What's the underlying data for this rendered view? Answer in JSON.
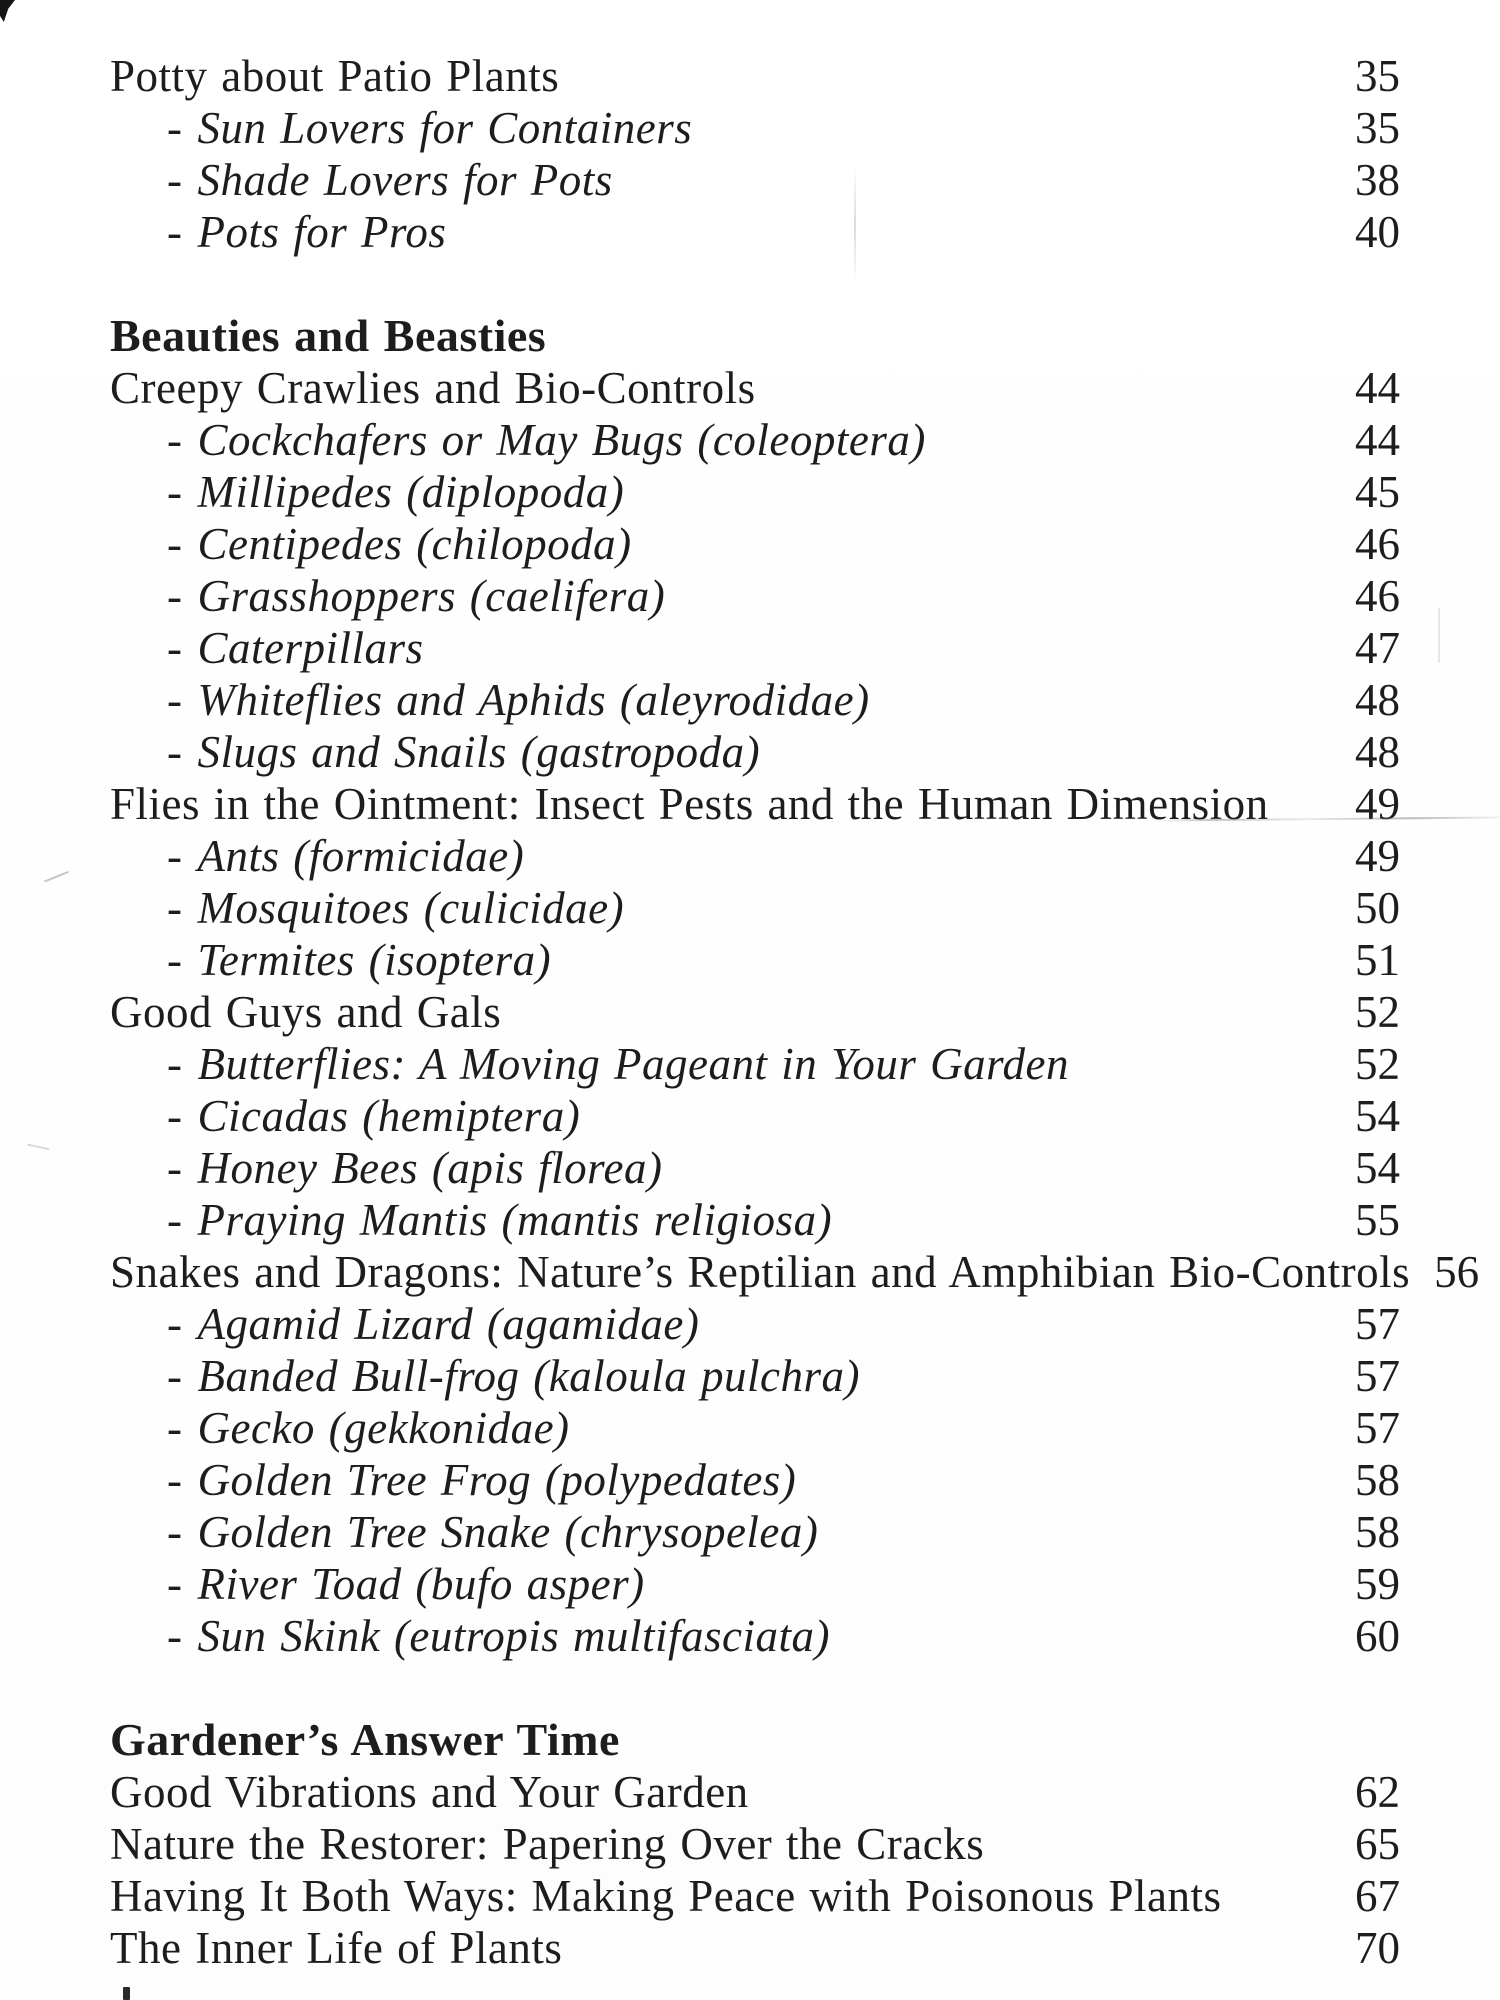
{
  "colors": {
    "ink": "#1d1d1d",
    "paper": "#ffffff"
  },
  "toc": {
    "sub_prefix": "-",
    "sections": [
      {
        "heading": null,
        "entries": [
          {
            "title": "Potty about Patio Plants",
            "page": "35",
            "sub": false
          },
          {
            "title": "Sun Lovers for Containers",
            "page": "35",
            "sub": true
          },
          {
            "title": "Shade Lovers for Pots",
            "page": "38",
            "sub": true
          },
          {
            "title": "Pots for Pros",
            "page": "40",
            "sub": true
          }
        ]
      },
      {
        "heading": "Beauties and Beasties",
        "entries": [
          {
            "title": "Creepy Crawlies and Bio-Controls",
            "page": "44",
            "sub": false
          },
          {
            "title": "Cockchafers or May Bugs (coleoptera)",
            "page": "44",
            "sub": true
          },
          {
            "title": "Millipedes (diplopoda)",
            "page": "45",
            "sub": true
          },
          {
            "title": "Centipedes (chilopoda)",
            "page": "46",
            "sub": true
          },
          {
            "title": "Grasshoppers (caelifera)",
            "page": "46",
            "sub": true
          },
          {
            "title": "Caterpillars",
            "page": "47",
            "sub": true
          },
          {
            "title": "Whiteflies and Aphids (aleyrodidae)",
            "page": "48",
            "sub": true
          },
          {
            "title": "Slugs and Snails (gastropoda)",
            "page": "48",
            "sub": true
          },
          {
            "title": "Flies in the Ointment: Insect Pests and the Human Dimension",
            "page": "49",
            "sub": false
          },
          {
            "title": "Ants (formicidae)",
            "page": "49",
            "sub": true
          },
          {
            "title": "Mosquitoes (culicidae)",
            "page": "50",
            "sub": true
          },
          {
            "title": "Termites (isoptera)",
            "page": "51",
            "sub": true
          },
          {
            "title": "Good Guys and Gals",
            "page": "52",
            "sub": false
          },
          {
            "title": "Butterflies: A Moving Pageant in Your Garden",
            "page": "52",
            "sub": true
          },
          {
            "title": "Cicadas (hemiptera)",
            "page": "54",
            "sub": true
          },
          {
            "title": "Honey Bees (apis florea)",
            "page": "54",
            "sub": true
          },
          {
            "title": "Praying Mantis (mantis religiosa)",
            "page": "55",
            "sub": true
          },
          {
            "title": "Snakes and Dragons: Nature’s Reptilian and Amphibian Bio-Controls",
            "page": "56",
            "sub": false
          },
          {
            "title": "Agamid Lizard (agamidae)",
            "page": "57",
            "sub": true
          },
          {
            "title": "Banded Bull-frog (kaloula pulchra)",
            "page": "57",
            "sub": true
          },
          {
            "title": "Gecko (gekkonidae)",
            "page": "57",
            "sub": true
          },
          {
            "title": "Golden Tree Frog (polypedates)",
            "page": "58",
            "sub": true
          },
          {
            "title": "Golden Tree Snake (chrysopelea)",
            "page": "58",
            "sub": true
          },
          {
            "title": "River Toad (bufo asper)",
            "page": "59",
            "sub": true
          },
          {
            "title": "Sun Skink (eutropis multifasciata)",
            "page": "60",
            "sub": true
          }
        ]
      },
      {
        "heading": "Gardener’s Answer Time",
        "entries": [
          {
            "title": "Good Vibrations and Your Garden",
            "page": "62",
            "sub": false
          },
          {
            "title": "Nature the Restorer: Papering Over the Cracks",
            "page": "65",
            "sub": false
          },
          {
            "title": "Having It Both Ways: Making Peace with Poisonous Plants",
            "page": "67",
            "sub": false
          },
          {
            "title": "The Inner Life of  Plants",
            "page": "70",
            "sub": false
          }
        ]
      }
    ]
  }
}
